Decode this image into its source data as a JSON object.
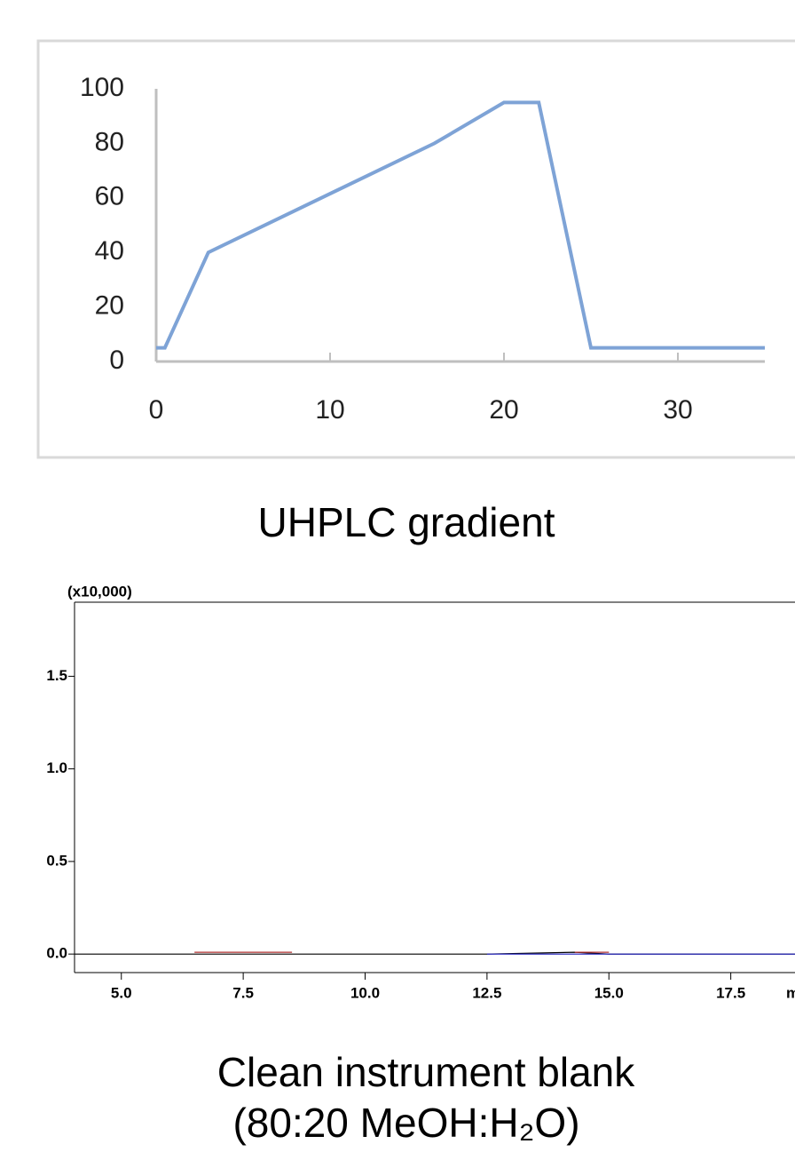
{
  "chart_data": [
    {
      "type": "line",
      "caption": [
        "UHPLC gradient"
      ],
      "x": [
        0,
        0.5,
        3,
        16,
        20,
        22,
        25,
        35
      ],
      "series": [
        {
          "color": "#7ea3d6",
          "values": [
            5,
            5,
            40,
            80,
            95,
            95,
            5,
            5
          ]
        }
      ],
      "xlim": [
        0,
        35
      ],
      "ylim": [
        0,
        100
      ],
      "xticks": [
        0,
        10,
        20,
        30
      ],
      "yticks": [
        0,
        20,
        40,
        60,
        80,
        100
      ]
    },
    {
      "type": "line",
      "caption": [
        "Clean  instrument blank",
        "(80:20 MeOH:H₂O)"
      ],
      "y_label": "(x10,000)",
      "x_label": "min",
      "x": [
        4.04,
        6,
        6.5,
        8.5,
        10,
        12.5,
        14.3,
        15,
        17.5,
        20
      ],
      "series": [
        {
          "color": "#000000",
          "values": [
            0,
            0,
            0,
            0,
            0,
            0,
            0.01,
            0,
            0,
            0
          ]
        },
        {
          "color": "#b03030",
          "values": [
            null,
            null,
            0.01,
            0.01,
            null,
            null,
            0.01,
            0.01,
            null,
            null
          ]
        },
        {
          "color": "#2020c0",
          "values": [
            null,
            null,
            null,
            null,
            null,
            0,
            0,
            0,
            0,
            0
          ]
        }
      ],
      "xlim": [
        4.04,
        20
      ],
      "ylim": [
        -0.1,
        1.9
      ],
      "xticks": [
        {
          "value": 5,
          "label": "5.0"
        },
        7.5,
        {
          "value": 10,
          "label": "10.0"
        },
        12.5,
        {
          "value": 15,
          "label": "15.0"
        },
        17.5
      ],
      "yticks": [
        {
          "value": 0,
          "label": "0.0"
        },
        0.5,
        {
          "value": 1,
          "label": "1.0"
        },
        1.5
      ]
    }
  ]
}
